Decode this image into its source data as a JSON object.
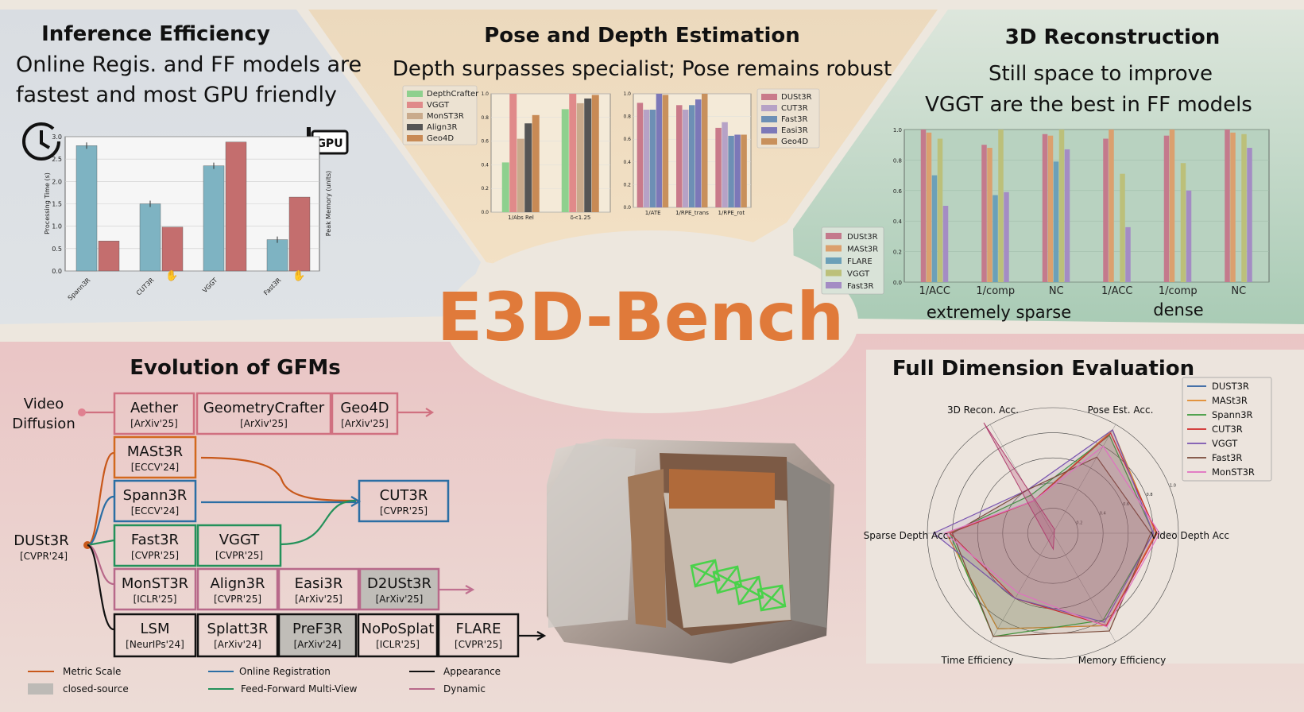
{
  "colors": {
    "blue": "#7eb3c2",
    "red": "#c46e6e",
    "orange": "#d2691e",
    "slate": "#2b6ea4",
    "green": "#23915a",
    "pink": "#b8698a",
    "title": "#e07a3a"
  },
  "main_title": "E3D-Bench",
  "inference": {
    "title": "Inference Efficiency",
    "subtitle_line1": "Online Regis. and FF models are",
    "subtitle_line2": "fastest and most GPU friendly",
    "gpu_label": "GPU",
    "chart_data": {
      "type": "bar",
      "ylabel": "Processing Time (s)",
      "y2label": "Peak Memory (units)",
      "ylim": [
        0,
        3.0
      ],
      "ticks": [
        "0.0",
        "0.5",
        "1.0",
        "1.5",
        "2.0",
        "2.5",
        "3.0"
      ],
      "categories": [
        "Spann3R",
        "CUT3R",
        "VGGT",
        "Fast3R"
      ],
      "series": [
        {
          "values": [
            2.8,
            1.5,
            2.35,
            0.7
          ]
        },
        {
          "values": [
            0.67,
            0.98,
            2.88,
            1.65
          ]
        }
      ]
    }
  },
  "pose_depth": {
    "title": "Pose and Depth Estimation",
    "subtitle": "Depth surpasses specialist; Pose remains robust",
    "chart_data": [
      {
        "type": "bar",
        "categories": [
          "1/Abs Rel",
          "δ<1.25"
        ],
        "ylim": [
          0,
          1.0
        ],
        "ticks": [
          "0.0",
          "0.2",
          "0.4",
          "0.6",
          "0.8",
          "1.0"
        ],
        "series": [
          {
            "name": "DepthCrafter",
            "values": [
              0.42,
              0.87
            ]
          },
          {
            "name": "VGGT",
            "values": [
              1.0,
              1.0
            ]
          },
          {
            "name": "MonST3R",
            "values": [
              0.62,
              0.92
            ]
          },
          {
            "name": "Align3R",
            "values": [
              0.75,
              0.96
            ]
          },
          {
            "name": "Geo4D",
            "values": [
              0.82,
              0.99
            ]
          }
        ]
      },
      {
        "type": "bar",
        "categories": [
          "1/ATE",
          "1/RPE_trans",
          "1/RPE_rot"
        ],
        "ylim": [
          0,
          1.0
        ],
        "ticks": [
          "0.0",
          "0.2",
          "0.4",
          "0.6",
          "0.8",
          "1.0"
        ],
        "series": [
          {
            "name": "DUSt3R",
            "values": [
              0.92,
              0.9,
              0.7
            ]
          },
          {
            "name": "CUT3R",
            "values": [
              0.86,
              0.86,
              0.75
            ]
          },
          {
            "name": "Fast3R",
            "values": [
              0.86,
              0.9,
              0.63
            ]
          },
          {
            "name": "Easi3R",
            "values": [
              1.0,
              0.95,
              0.64
            ]
          },
          {
            "name": "Geo4D",
            "values": [
              0.99,
              1.0,
              0.64
            ]
          }
        ]
      }
    ]
  },
  "recon": {
    "title": "3D Reconstruction",
    "subtitle_line1": "Still space to improve",
    "subtitle_line2": "VGGT are the best in FF models",
    "group_labels": [
      "extremely sparse",
      "dense"
    ],
    "chart_data": {
      "type": "bar",
      "categories": [
        "1/ACC",
        "1/comp",
        "NC",
        "1/ACC",
        "1/comp",
        "NC"
      ],
      "ylim": [
        0,
        1.0
      ],
      "ticks": [
        "0.0",
        "0.2",
        "0.4",
        "0.6",
        "0.8",
        "1.0"
      ],
      "series": [
        {
          "name": "DUSt3R",
          "values": [
            1.0,
            0.9,
            0.97,
            0.94,
            0.96,
            1.0
          ]
        },
        {
          "name": "MASt3R",
          "values": [
            0.98,
            0.88,
            0.96,
            1.0,
            1.0,
            0.98
          ]
        },
        {
          "name": "FLARE",
          "values": [
            0.7,
            0.57,
            0.79,
            0.0,
            0.0,
            0.0
          ]
        },
        {
          "name": "VGGT",
          "values": [
            0.94,
            1.0,
            1.0,
            0.71,
            0.78,
            0.97
          ]
        },
        {
          "name": "Fast3R",
          "values": [
            0.5,
            0.59,
            0.87,
            0.36,
            0.6,
            0.88
          ]
        }
      ]
    }
  },
  "evolution": {
    "title": "Evolution of GFMs",
    "video_diffusion_line1": "Video",
    "video_diffusion_line2": "Diffusion",
    "root_name": "DUSt3R",
    "root_venue": "[CVPR'24]",
    "boxes": [
      {
        "name": "Aether",
        "venue": "[ArXiv'25]"
      },
      {
        "name": "GeometryCrafter",
        "venue": "[ArXiv'25]"
      },
      {
        "name": "Geo4D",
        "venue": "[ArXiv'25]"
      },
      {
        "name": "MASt3R",
        "venue": "[ECCV'24]"
      },
      {
        "name": "Spann3R",
        "venue": "[ECCV'24]"
      },
      {
        "name": "CUT3R",
        "venue": "[CVPR'25]"
      },
      {
        "name": "Fast3R",
        "venue": "[CVPR'25]"
      },
      {
        "name": "VGGT",
        "venue": "[CVPR'25]"
      },
      {
        "name": "MonST3R",
        "venue": "[ICLR'25]"
      },
      {
        "name": "Align3R",
        "venue": "[CVPR'25]"
      },
      {
        "name": "Easi3R",
        "venue": "[ArXiv'25]"
      },
      {
        "name": "D2USt3R",
        "venue": "[ArXiv'25]"
      },
      {
        "name": "LSM",
        "venue": "[NeurIPs'24]"
      },
      {
        "name": "Splatt3R",
        "venue": "[ArXiv'24]"
      },
      {
        "name": "PreF3R",
        "venue": "[ArXiv'24]"
      },
      {
        "name": "NoPoSplat",
        "venue": "[ICLR'25]"
      },
      {
        "name": "FLARE",
        "venue": "[CVPR'25]"
      }
    ],
    "legend": [
      "Metric Scale",
      "Online Registration",
      "Appearance",
      "closed-source",
      "Feed-Forward Multi-View",
      "Dynamic"
    ]
  },
  "full_eval": {
    "title": "Full Dimension Evaluation",
    "axes": [
      "Pose Est. Acc.",
      "Video Depth Acc",
      "Memory Efficiency",
      "Time Efficiency",
      "Sparse Depth Acc.",
      "3D Recon. Acc."
    ],
    "ring_labels": [
      "0.2",
      "0.4",
      "0.6",
      "0.8",
      "1.0"
    ],
    "chart_data": {
      "type": "radar",
      "series": [
        {
          "name": "DUST3R",
          "values": [
            0.95,
            0.82,
            0.85,
            0.88,
            0.85,
            0.3
          ]
        },
        {
          "name": "MASt3R",
          "values": [
            0.95,
            0.82,
            0.85,
            0.88,
            0.85,
            0.3
          ]
        },
        {
          "name": "Spann3R",
          "values": [
            0.9,
            0.8,
            0.8,
            0.95,
            0.82,
            0.35
          ]
        },
        {
          "name": "CUT3R",
          "values": [
            0.92,
            0.83,
            0.85,
            0.6,
            0.82,
            0.3
          ]
        },
        {
          "name": "VGGT",
          "values": [
            0.95,
            0.8,
            0.82,
            0.6,
            0.95,
            0.4
          ]
        },
        {
          "name": "Fast3R",
          "values": [
            0.7,
            0.78,
            0.9,
            0.95,
            0.8,
            0.4
          ]
        },
        {
          "name": "MonST3R",
          "values": [
            0.8,
            0.85,
            0.86,
            0.55,
            0.86,
            0.3
          ]
        }
      ]
    }
  }
}
